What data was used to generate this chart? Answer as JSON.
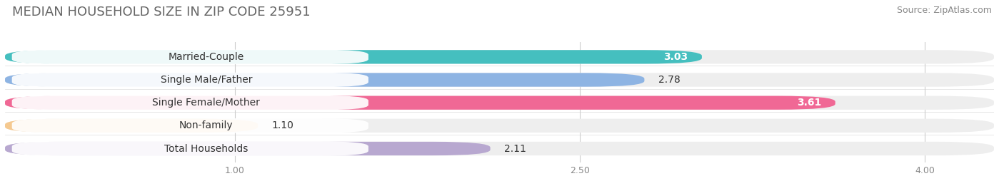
{
  "title": "MEDIAN HOUSEHOLD SIZE IN ZIP CODE 25951",
  "source": "Source: ZipAtlas.com",
  "categories": [
    "Married-Couple",
    "Single Male/Father",
    "Single Female/Mother",
    "Non-family",
    "Total Households"
  ],
  "values": [
    3.03,
    2.78,
    3.61,
    1.1,
    2.11
  ],
  "bar_colors": [
    "#45BFBF",
    "#8EB4E3",
    "#F06895",
    "#F5C990",
    "#B8A8D0"
  ],
  "value_colors": [
    "white",
    "black",
    "white",
    "black",
    "black"
  ],
  "xlim_min": 0.0,
  "xlim_max": 4.3,
  "data_min": 1.0,
  "data_max": 4.0,
  "xticks": [
    1.0,
    2.5,
    4.0
  ],
  "title_fontsize": 13,
  "source_fontsize": 9,
  "label_fontsize": 10,
  "value_fontsize": 9,
  "background_color": "#ffffff",
  "bar_track_color": "#eeeeee",
  "label_pill_color": "#ffffff",
  "title_color": "#666666"
}
